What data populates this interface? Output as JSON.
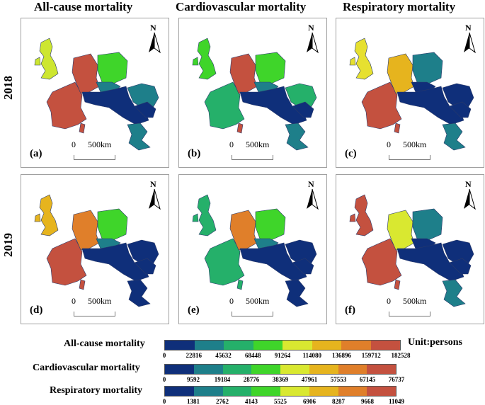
{
  "columns": [
    "All-cause mortality",
    "Cardiovascular mortality",
    "Respiratory mortality"
  ],
  "rows": [
    "2018",
    "2019"
  ],
  "panels": [
    {
      "label": "(a)",
      "colors": {
        "uk": "#cde630",
        "france": "#c4513f",
        "germany": "#c4513f",
        "poland": "#3fd52a",
        "czech": "#1e7f8a",
        "balkans": "#0f2f7a",
        "romania": "#1e7f8a",
        "greece": "#1e7f8a",
        "italy_pt": "#c4513f"
      }
    },
    {
      "label": "(b)",
      "colors": {
        "uk": "#3fd52a",
        "france": "#25b06a",
        "germany": "#c4513f",
        "poland": "#3fd52a",
        "czech": "#1e7f8a",
        "balkans": "#0f2f7a",
        "romania": "#25b06a",
        "greece": "#1e7f8a",
        "italy_pt": "#c4513f"
      }
    },
    {
      "label": "(c)",
      "colors": {
        "uk": "#e6e030",
        "france": "#c4513f",
        "germany": "#e6b41e",
        "poland": "#1e7f8a",
        "czech": "#0f2f7a",
        "balkans": "#0f2f7a",
        "romania": "#0f2f7a",
        "greece": "#1e7f8a",
        "italy_pt": "#c4513f"
      }
    },
    {
      "label": "(d)",
      "colors": {
        "uk": "#e6b41e",
        "france": "#c4513f",
        "germany": "#e07f2a",
        "poland": "#3fd52a",
        "czech": "#1e7f8a",
        "balkans": "#0f2f7a",
        "romania": "#0f2f7a",
        "greece": "#0f2f7a",
        "italy_pt": "#c4513f"
      }
    },
    {
      "label": "(e)",
      "colors": {
        "uk": "#25b06a",
        "france": "#25b06a",
        "germany": "#e07f2a",
        "poland": "#3fd52a",
        "czech": "#1e7f8a",
        "balkans": "#0f2f7a",
        "romania": "#0f2f7a",
        "greece": "#0f2f7a",
        "italy_pt": "#25b06a"
      }
    },
    {
      "label": "(f)",
      "colors": {
        "uk": "#c4513f",
        "france": "#c4513f",
        "germany": "#d9e830",
        "poland": "#1e7f8a",
        "czech": "#0f2f7a",
        "balkans": "#0f2f7a",
        "romania": "#0f2f7a",
        "greece": "#1e7f8a",
        "italy_pt": "#c4513f"
      }
    }
  ],
  "scale": {
    "zero": "0",
    "distance": "500",
    "unit": "km"
  },
  "north_label": "N",
  "legend": {
    "unit_label": "Unit:persons",
    "palette": [
      "#0f2f7a",
      "#1e7f8a",
      "#25b06a",
      "#3fd52a",
      "#d9e830",
      "#e6b41e",
      "#e07f2a",
      "#c4513f"
    ],
    "scales": [
      {
        "name": "All-cause mortality",
        "ticks": [
          "0",
          "22816",
          "45632",
          "68448",
          "91264",
          "114080",
          "136896",
          "159712",
          "182528"
        ]
      },
      {
        "name": "Cardiovascular mortality",
        "ticks": [
          "0",
          "9592",
          "19184",
          "28776",
          "38369",
          "47961",
          "57553",
          "67145",
          "76737"
        ]
      },
      {
        "name": "Respiratory mortality",
        "ticks": [
          "0",
          "1381",
          "2762",
          "4143",
          "5525",
          "6906",
          "8287",
          "9668",
          "11049"
        ]
      }
    ]
  }
}
